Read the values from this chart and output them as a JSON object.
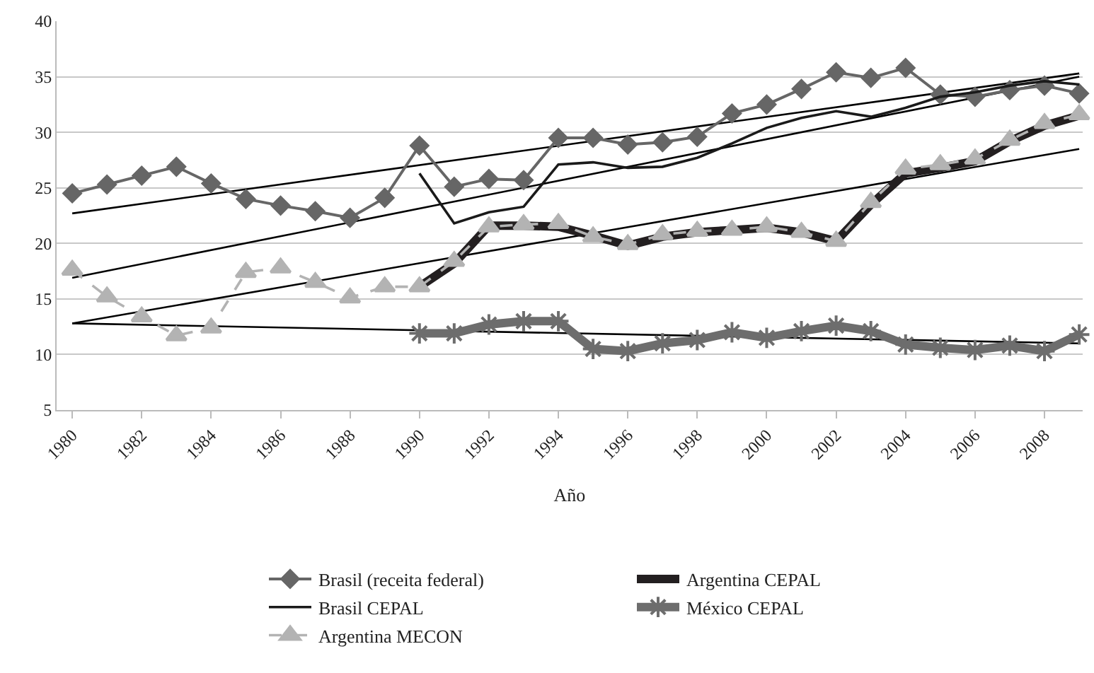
{
  "chart_data": {
    "type": "line",
    "xlabel": "Año",
    "xlim": [
      1979.55,
      2009.1
    ],
    "xticks": [
      1980,
      1982,
      1984,
      1986,
      1988,
      1990,
      1992,
      1994,
      1996,
      1998,
      2000,
      2002,
      2004,
      2006,
      2008
    ],
    "ylim": [
      5,
      40
    ],
    "yticks": [
      5,
      10,
      15,
      20,
      25,
      30,
      35,
      40
    ],
    "grid": "y",
    "legend": "bottom",
    "x": [
      1980,
      1981,
      1982,
      1983,
      1984,
      1985,
      1986,
      1987,
      1988,
      1989,
      1990,
      1991,
      1992,
      1993,
      1994,
      1995,
      1996,
      1997,
      1998,
      1999,
      2000,
      2001,
      2002,
      2003,
      2004,
      2005,
      2006,
      2007,
      2008,
      2009
    ],
    "series": [
      {
        "name": "Brasil (receita federal)",
        "color": "#666666",
        "marker": "diamond",
        "line_style": "solid",
        "values": [
          24.5,
          25.3,
          26.1,
          26.9,
          25.4,
          24.0,
          23.4,
          22.9,
          22.3,
          24.1,
          28.8,
          25.1,
          25.8,
          25.7,
          29.5,
          29.5,
          28.9,
          29.1,
          29.6,
          31.7,
          32.5,
          33.9,
          35.4,
          34.9,
          35.8,
          33.4,
          33.2,
          33.8,
          34.2,
          33.5
        ]
      },
      {
        "name": "Argentina CEPAL",
        "color": "#231f20",
        "marker": "none",
        "line_style": "solid",
        "values": [
          null,
          null,
          null,
          null,
          null,
          null,
          null,
          null,
          null,
          null,
          16.1,
          18.2,
          21.6,
          21.6,
          21.5,
          20.7,
          19.8,
          20.6,
          21.0,
          21.2,
          21.4,
          21.0,
          20.2,
          23.5,
          26.3,
          26.8,
          27.4,
          29.2,
          30.6,
          31.5
        ]
      },
      {
        "name": "Brasil CEPAL",
        "color": "#1a1a1a",
        "marker": "none",
        "line_style": "solid",
        "values": [
          null,
          null,
          null,
          null,
          null,
          null,
          null,
          null,
          null,
          null,
          26.3,
          21.8,
          22.8,
          23.3,
          27.1,
          27.3,
          26.8,
          26.9,
          27.7,
          29.0,
          30.4,
          31.3,
          31.9,
          31.4,
          32.2,
          33.2,
          33.6,
          34.2,
          34.6,
          34.3
        ]
      },
      {
        "name": "México CEPAL",
        "color": "#6d6d6d",
        "marker": "cross",
        "line_style": "solid",
        "values": [
          null,
          null,
          null,
          null,
          null,
          null,
          null,
          null,
          null,
          null,
          11.9,
          11.9,
          12.7,
          13.0,
          13.0,
          10.5,
          10.3,
          11.0,
          11.3,
          12.0,
          11.5,
          12.1,
          12.6,
          12.1,
          10.9,
          10.6,
          10.4,
          10.8,
          10.3,
          11.8
        ]
      },
      {
        "name": "Argentina MECON",
        "color": "#b3b3b3",
        "marker": "triangle",
        "line_style": "dashed",
        "values": [
          17.6,
          15.2,
          13.4,
          11.7,
          12.4,
          17.4,
          17.8,
          16.5,
          15.1,
          16.1,
          16.1,
          18.4,
          21.5,
          21.7,
          21.8,
          20.6,
          19.9,
          20.8,
          21.1,
          21.2,
          21.5,
          21.0,
          20.2,
          23.7,
          26.7,
          27.1,
          27.6,
          29.3,
          30.8,
          31.6
        ]
      },
      {
        "type": "line",
        "color": "#000000",
        "marker": "none",
        "line_style": "solid",
        "values": [
          22.7,
          null,
          null,
          null,
          null,
          null,
          null,
          null,
          null,
          null,
          null,
          null,
          null,
          null,
          null,
          null,
          null,
          null,
          null,
          null,
          null,
          null,
          null,
          null,
          null,
          null,
          null,
          null,
          null,
          35.3
        ]
      },
      {
        "type": "line",
        "color": "#000000",
        "marker": "none",
        "line_style": "solid",
        "values": [
          16.9,
          null,
          null,
          null,
          null,
          null,
          null,
          null,
          null,
          null,
          null,
          null,
          null,
          null,
          null,
          null,
          null,
          null,
          null,
          null,
          null,
          null,
          null,
          null,
          null,
          null,
          null,
          null,
          null,
          35.0
        ]
      },
      {
        "type": "line",
        "color": "#000000",
        "marker": "none",
        "line_style": "solid",
        "values": [
          12.8,
          null,
          null,
          null,
          null,
          null,
          null,
          null,
          null,
          null,
          null,
          null,
          null,
          null,
          null,
          null,
          null,
          null,
          null,
          null,
          null,
          null,
          null,
          null,
          null,
          null,
          null,
          null,
          null,
          28.5
        ]
      },
      {
        "type": "line",
        "color": "#000000",
        "marker": "none",
        "line_style": "solid",
        "values": [
          12.8,
          null,
          null,
          null,
          null,
          null,
          null,
          null,
          null,
          null,
          null,
          null,
          null,
          null,
          null,
          null,
          null,
          null,
          null,
          null,
          null,
          null,
          null,
          null,
          null,
          null,
          null,
          null,
          null,
          11.0
        ]
      }
    ]
  }
}
